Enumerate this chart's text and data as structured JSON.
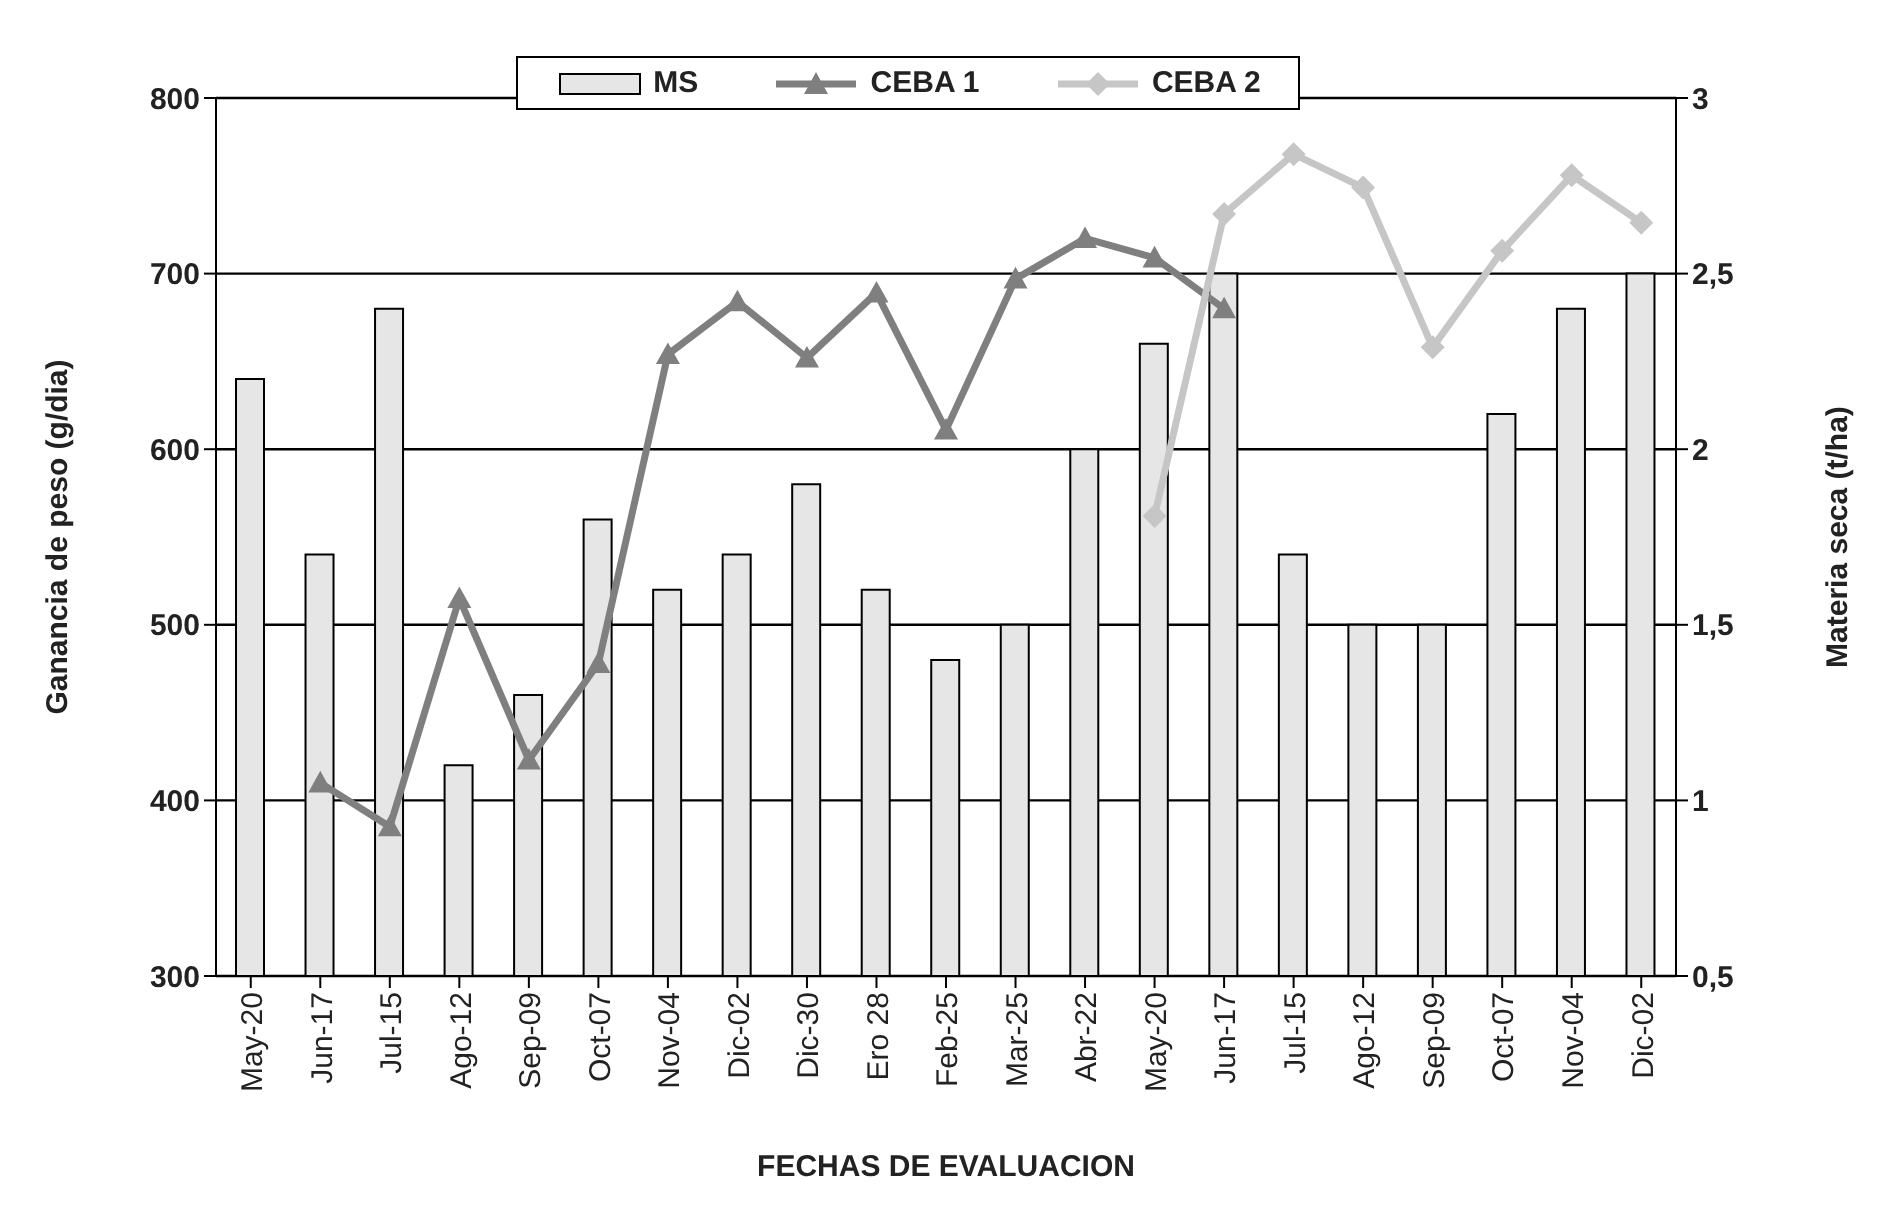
{
  "chart_data": {
    "type": "bar",
    "xlabel": "FECHAS DE EVALUACION",
    "ylabel": "Ganancia de peso (g/dia)",
    "y2label": "Materia seca (t/ha)",
    "categories": [
      "May-20",
      "Jun-17",
      "Jul-15",
      "Ago-12",
      "Sep-09",
      "Oct-07",
      "Nov-04",
      "Dic-02",
      "Dic-30",
      "Ero 28",
      "Feb-25",
      "Mar-25",
      "Abr-22",
      "May-20",
      "Jun-17",
      "Jul-15",
      "Ago-12",
      "Sep-09",
      "Oct-07",
      "Nov-04",
      "Dic-02"
    ],
    "series": [
      {
        "name": "MS",
        "axis": "y2",
        "color": "#e6e6e6",
        "values": [
          2.2,
          1.7,
          2.4,
          1.1,
          1.3,
          1.8,
          1.6,
          1.7,
          1.9,
          1.6,
          1.4,
          1.5,
          2.0,
          2.3,
          2.5,
          1.7,
          1.5,
          1.5,
          2.1,
          2.4,
          2.5
        ]
      },
      {
        "name": "CEBA 1",
        "type": "line",
        "marker": "triangle",
        "color": "#7f7f7f",
        "values": [
          null,
          410,
          385,
          515,
          423,
          478,
          654,
          684,
          652,
          689,
          611,
          697,
          720,
          709,
          680,
          null,
          null,
          null,
          null,
          null,
          null
        ]
      },
      {
        "name": "CEBA 2",
        "type": "line",
        "marker": "diamond",
        "color": "#c6c6c6",
        "values": [
          null,
          null,
          null,
          null,
          null,
          null,
          null,
          null,
          null,
          null,
          null,
          null,
          null,
          562,
          734,
          768,
          749,
          658,
          713,
          756,
          729
        ]
      }
    ],
    "ylim": [
      300,
      800
    ],
    "yticks": [
      300,
      400,
      500,
      600,
      700,
      800
    ],
    "y2lim": [
      0.5,
      3
    ],
    "y2ticks": [
      {
        "value": 0.5,
        "label": "0,5"
      },
      1,
      {
        "value": 1.5,
        "label": "1,5"
      },
      2,
      {
        "value": 2.5,
        "label": "2,5"
      },
      3
    ],
    "grid": "y",
    "legend": "top"
  }
}
